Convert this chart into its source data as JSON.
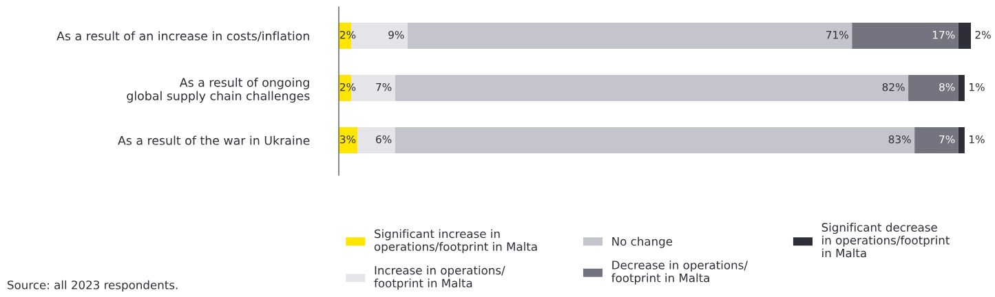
{
  "chart_data": {
    "type": "bar",
    "orientation": "horizontal",
    "stacked": true,
    "legend": "bottom",
    "grid": false,
    "categories": [
      "As a result of an increase in costs/inflation",
      "As a result of ongoing\nglobal supply chain challenges",
      "As a result of the war in Ukraine"
    ],
    "series": [
      {
        "name": "Significant increase in\noperations/footprint in Malta",
        "color": "#ffe600",
        "values": [
          2,
          2,
          3
        ],
        "value_labels": [
          "2%",
          "2%",
          "3%"
        ]
      },
      {
        "name": "Increase in operations/\nfootprint in Malta",
        "color": "#e4e4e9",
        "values": [
          9,
          7,
          6
        ],
        "value_labels": [
          "9%",
          "7%",
          "6%"
        ]
      },
      {
        "name": "No change",
        "color": "#c4c4cd",
        "values": [
          71,
          82,
          83
        ],
        "value_labels": [
          "71%",
          "82%",
          "83%"
        ]
      },
      {
        "name": "Decrease in operations/\nfootprint in Malta",
        "color": "#747480",
        "values": [
          17,
          8,
          7
        ],
        "value_labels": [
          "17%",
          "8%",
          "7%"
        ]
      },
      {
        "name": "Significant decrease\nin operations/footprint\nin Malta",
        "color": "#2e2e38",
        "values": [
          2,
          1,
          1
        ],
        "value_labels": [
          "2%",
          "1%",
          "1%"
        ]
      }
    ],
    "annotations": [
      "Source: all 2023 respondents."
    ]
  }
}
